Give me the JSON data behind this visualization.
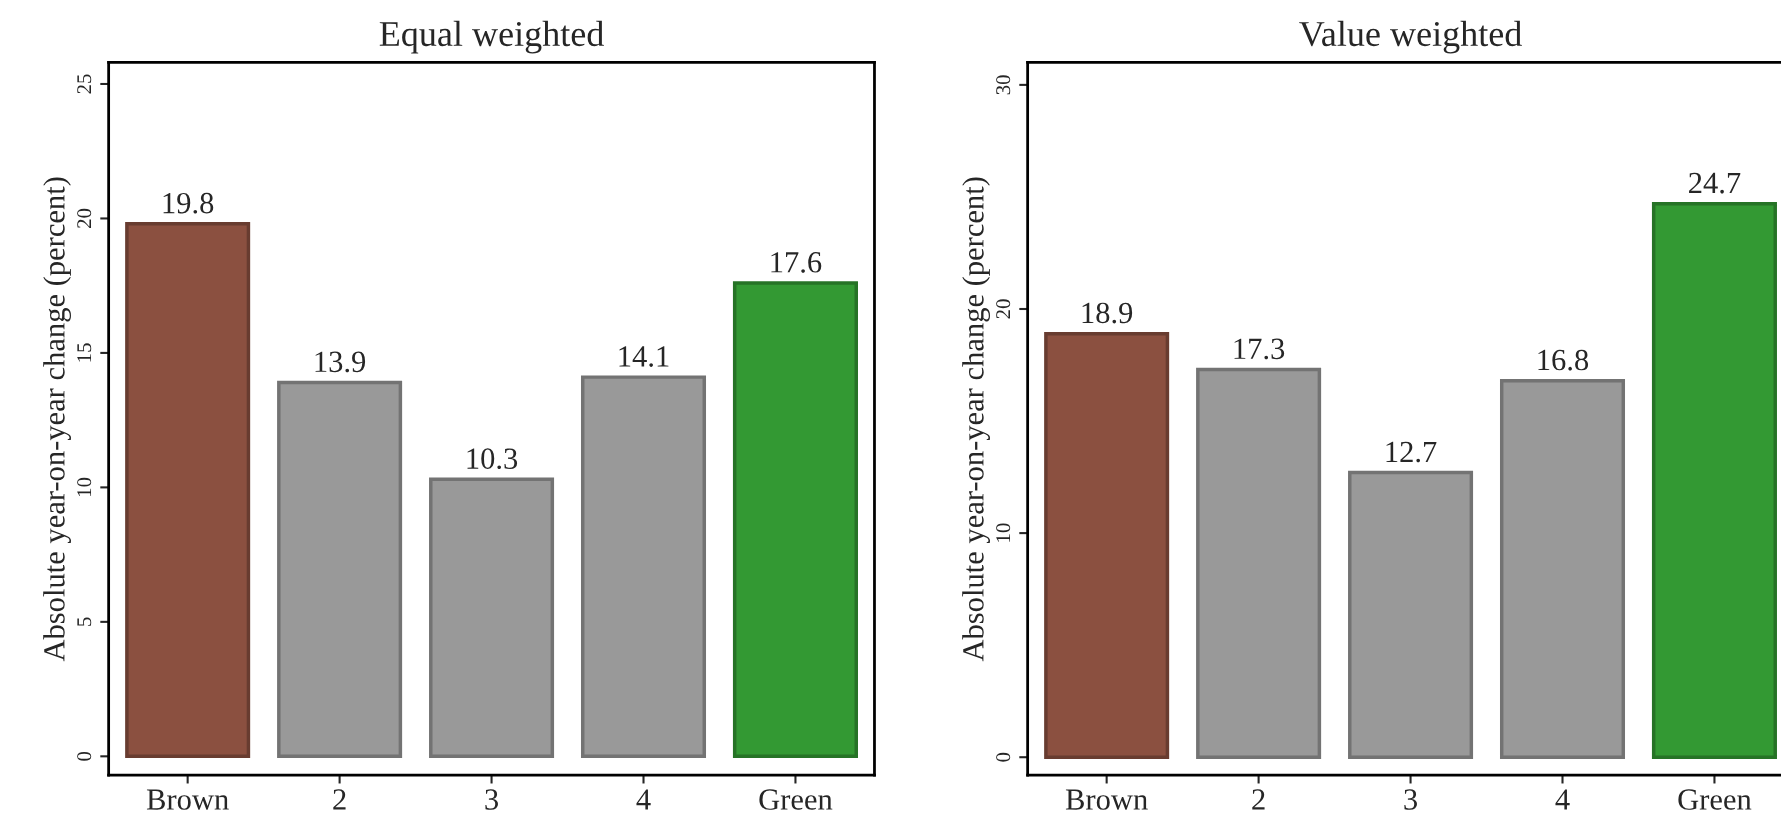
{
  "chart_data": [
    {
      "type": "bar",
      "title": "Equal weighted",
      "ylabel": "Absolute year-on-year change (percent)",
      "categories": [
        "Brown",
        "2",
        "3",
        "4",
        "Green"
      ],
      "values": [
        19.8,
        13.9,
        10.3,
        14.1,
        17.6
      ],
      "colors": [
        "#8b5040",
        "#999999",
        "#999999",
        "#999999",
        "#339933"
      ],
      "ylim": [
        -0.7,
        25.8
      ],
      "yticks": [
        0,
        5,
        10,
        15,
        20,
        25
      ],
      "data_labels": true,
      "grid": false,
      "legend": false
    },
    {
      "type": "bar",
      "title": "Value weighted",
      "ylabel": "Absolute year-on-year change (percent)",
      "categories": [
        "Brown",
        "2",
        "3",
        "4",
        "Green"
      ],
      "values": [
        18.9,
        17.3,
        12.7,
        16.8,
        24.7
      ],
      "colors": [
        "#8b5040",
        "#999999",
        "#999999",
        "#999999",
        "#339933"
      ],
      "ylim": [
        -0.8,
        31
      ],
      "yticks": [
        0,
        10,
        20,
        30
      ],
      "data_labels": true,
      "grid": false,
      "legend": false
    }
  ]
}
